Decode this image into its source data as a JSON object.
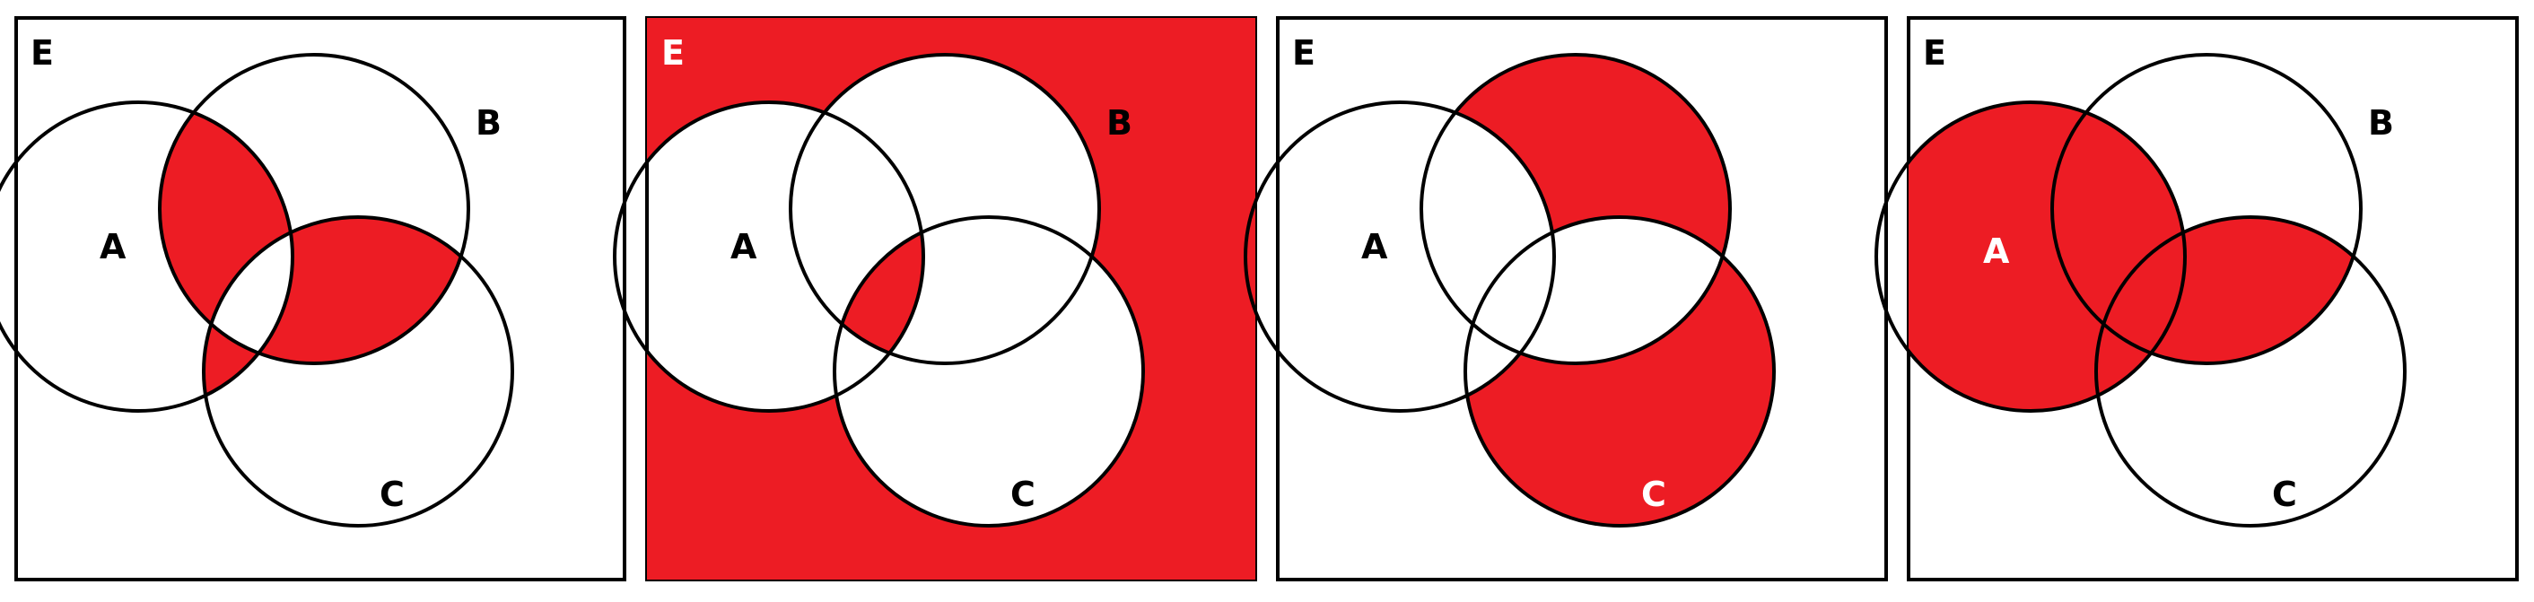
{
  "colors": {
    "shade": "#ed1c24",
    "line": "#000000",
    "background": "#ffffff",
    "label_on_shade": "#ffffff",
    "label_default": "#000000"
  },
  "panels": [
    {
      "id": "panel-1",
      "universe_label": "E",
      "set_labels": {
        "A": "A",
        "B": "B",
        "C": "C"
      },
      "shaded_regions": [
        "A∩B only",
        "A∩C only",
        "B∩C only"
      ]
    },
    {
      "id": "panel-2",
      "universe_label": "E",
      "set_labels": {
        "A": "A",
        "B": "B",
        "C": "C"
      },
      "shaded_regions": [
        "outside A∪B∪C",
        "A∩B∩C"
      ]
    },
    {
      "id": "panel-3",
      "universe_label": "E",
      "set_labels": {
        "A": "A",
        "B": "B",
        "C": "C"
      },
      "shaded_regions": [
        "B only",
        "C only"
      ]
    },
    {
      "id": "panel-4",
      "universe_label": "E",
      "set_labels": {
        "A": "A",
        "B": "B",
        "C": "C"
      },
      "shaded_regions": [
        "A only",
        "A∩B only",
        "A∩C only",
        "A∩B∩C",
        "B∩C only"
      ]
    }
  ]
}
